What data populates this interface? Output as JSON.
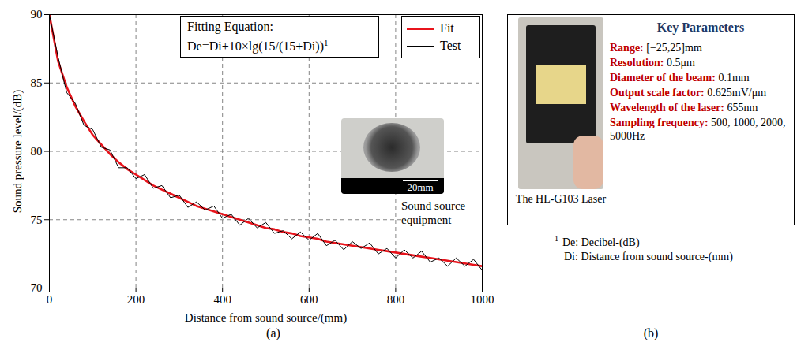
{
  "chart_data": {
    "type": "line",
    "x_label": "Distance from sound source/(mm)",
    "y_label": "Sound pressure level/(dB)",
    "x": [
      0,
      20,
      40,
      60,
      80,
      100,
      120,
      140,
      160,
      180,
      200,
      220,
      240,
      260,
      280,
      300,
      320,
      340,
      360,
      380,
      400,
      420,
      440,
      460,
      480,
      500,
      520,
      540,
      560,
      580,
      600,
      620,
      640,
      660,
      680,
      700,
      720,
      740,
      760,
      780,
      800,
      820,
      840,
      860,
      880,
      900,
      920,
      940,
      960,
      980,
      1000
    ],
    "series": [
      {
        "name": "Fit",
        "color": "#e8141c",
        "values": [
          90,
          86.6,
          84.7,
          83.3,
          82.2,
          81.2,
          80.5,
          79.8,
          79.2,
          78.7,
          78.3,
          77.9,
          77.5,
          77.2,
          76.9,
          76.6,
          76.3,
          76.0,
          75.8,
          75.6,
          75.4,
          75.2,
          75.0,
          74.8,
          74.6,
          74.4,
          74.3,
          74.1,
          74.0,
          73.8,
          73.7,
          73.6,
          73.4,
          73.3,
          73.2,
          73.1,
          73.0,
          72.9,
          72.8,
          72.7,
          72.6,
          72.5,
          72.4,
          72.3,
          72.2,
          72.1,
          72.0,
          71.9,
          71.8,
          71.7,
          71.6
        ]
      },
      {
        "name": "Test",
        "color": "#000000",
        "values": [
          90,
          86.9,
          84.3,
          83.5,
          81.9,
          81.6,
          80.3,
          80.1,
          78.8,
          78.8,
          78.0,
          78.3,
          77.3,
          77.5,
          76.6,
          76.8,
          75.9,
          76.3,
          75.7,
          76.0,
          75.1,
          75.4,
          74.6,
          75.1,
          74.4,
          74.8,
          74.0,
          74.2,
          73.6,
          74.1,
          73.5,
          74.0,
          73.1,
          73.5,
          72.8,
          73.4,
          72.9,
          73.3,
          72.5,
          72.9,
          72.2,
          72.8,
          72.2,
          72.7,
          71.9,
          72.2,
          71.6,
          72.2,
          71.6,
          72.1,
          71.3
        ]
      }
    ],
    "xlim": [
      0,
      1000
    ],
    "xticks": [
      0,
      200,
      400,
      600,
      800,
      1000
    ],
    "ylim": [
      70,
      90
    ],
    "yticks": [
      70,
      75,
      80,
      85,
      90
    ],
    "grid": true,
    "legend": "top-right",
    "annotations": [
      "Fitting Equation:",
      "De=Di+10×lg(15/(15+Di))",
      "1"
    ],
    "inset": {
      "scale_label": "20mm",
      "caption": "Sound source equipment"
    }
  },
  "panel_labels": [
    "(a)",
    "(b)"
  ],
  "panel_b": {
    "photo_caption": "The HL-G103 Laser",
    "heading": "Key Parameters",
    "parameters": [
      {
        "name": "Range:",
        "value": "[−25,25]mm"
      },
      {
        "name": "Resolution:",
        "value": "0.5μm"
      },
      {
        "name": "Diameter of the beam:",
        "value": "0.1mm"
      },
      {
        "name": "Output scale factor:",
        "value": "0.625mV/μm"
      },
      {
        "name": "Wavelength of the laser:",
        "value": "655nm"
      },
      {
        "name": "Sampling frequency:",
        "value": "500, 1000, 2000, 5000Hz"
      }
    ]
  },
  "footnote": {
    "mark": "1",
    "lines": [
      "De: Decibel-(dB)",
      "Di: Distance from sound source-(mm)"
    ]
  }
}
